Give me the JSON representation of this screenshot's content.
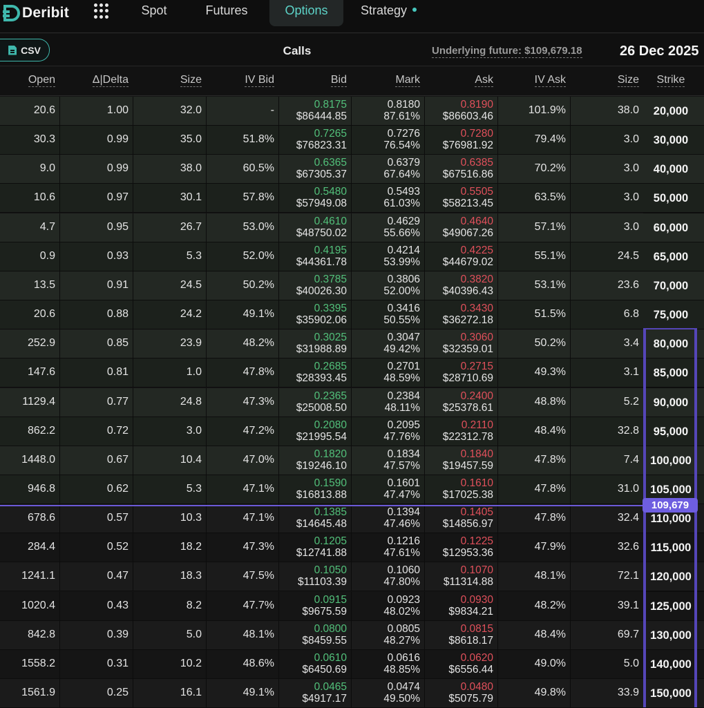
{
  "app": {
    "brand": "Deribit",
    "accent": "#5dd3c8"
  },
  "nav": {
    "tabs": [
      {
        "label": "Spot"
      },
      {
        "label": "Futures"
      },
      {
        "label": "Options"
      },
      {
        "label": "Strategy"
      }
    ],
    "active": "Options"
  },
  "toolbar": {
    "csv_label": "CSV",
    "calls_label": "Calls",
    "underlying": "Underlying future: $109,679.18",
    "expiry": "26 Dec 2025"
  },
  "columns": [
    "Open",
    "Δ|Delta",
    "Size",
    "IV Bid",
    "Bid",
    "Mark",
    "Ask",
    "IV Ask",
    "Size",
    "Strike"
  ],
  "index_price_tag": "109,679",
  "rows": [
    {
      "open": "20.6",
      "delta": "1.00",
      "size": "32.0",
      "iv_bid": "-",
      "bid": "0.8175",
      "bid_usd": "$86444.85",
      "mark": "0.8180",
      "mark_iv": "87.61%",
      "ask": "0.8190",
      "ask_usd": "$86603.46",
      "iv_ask": "101.9%",
      "ask_size": "38.0",
      "strike": "20,000"
    },
    {
      "open": "30.3",
      "delta": "0.99",
      "size": "35.0",
      "iv_bid": "51.8%",
      "bid": "0.7265",
      "bid_usd": "$76823.31",
      "mark": "0.7276",
      "mark_iv": "76.54%",
      "ask": "0.7280",
      "ask_usd": "$76981.92",
      "iv_ask": "79.4%",
      "ask_size": "3.0",
      "strike": "30,000"
    },
    {
      "open": "9.0",
      "delta": "0.99",
      "size": "38.0",
      "iv_bid": "60.5%",
      "bid": "0.6365",
      "bid_usd": "$67305.37",
      "mark": "0.6379",
      "mark_iv": "67.64%",
      "ask": "0.6385",
      "ask_usd": "$67516.86",
      "iv_ask": "70.2%",
      "ask_size": "3.0",
      "strike": "40,000"
    },
    {
      "open": "10.6",
      "delta": "0.97",
      "size": "30.1",
      "iv_bid": "57.8%",
      "bid": "0.5480",
      "bid_usd": "$57949.08",
      "mark": "0.5493",
      "mark_iv": "61.03%",
      "ask": "0.5505",
      "ask_usd": "$58213.45",
      "iv_ask": "63.5%",
      "ask_size": "3.0",
      "strike": "50,000"
    },
    {
      "open": "4.7",
      "delta": "0.95",
      "size": "26.7",
      "iv_bid": "53.0%",
      "bid": "0.4610",
      "bid_usd": "$48750.02",
      "mark": "0.4629",
      "mark_iv": "55.66%",
      "ask": "0.4640",
      "ask_usd": "$49067.26",
      "iv_ask": "57.1%",
      "ask_size": "3.0",
      "strike": "60,000"
    },
    {
      "open": "0.9",
      "delta": "0.93",
      "size": "5.3",
      "iv_bid": "52.0%",
      "bid": "0.4195",
      "bid_usd": "$44361.78",
      "mark": "0.4214",
      "mark_iv": "53.99%",
      "ask": "0.4225",
      "ask_usd": "$44679.02",
      "iv_ask": "55.1%",
      "ask_size": "24.5",
      "strike": "65,000"
    },
    {
      "open": "13.5",
      "delta": "0.91",
      "size": "24.5",
      "iv_bid": "50.2%",
      "bid": "0.3785",
      "bid_usd": "$40026.30",
      "mark": "0.3806",
      "mark_iv": "52.00%",
      "ask": "0.3820",
      "ask_usd": "$40396.43",
      "iv_ask": "53.1%",
      "ask_size": "23.6",
      "strike": "70,000"
    },
    {
      "open": "20.6",
      "delta": "0.88",
      "size": "24.2",
      "iv_bid": "49.1%",
      "bid": "0.3395",
      "bid_usd": "$35902.06",
      "mark": "0.3416",
      "mark_iv": "50.55%",
      "ask": "0.3430",
      "ask_usd": "$36272.18",
      "iv_ask": "51.5%",
      "ask_size": "6.8",
      "strike": "75,000"
    },
    {
      "open": "252.9",
      "delta": "0.85",
      "size": "23.9",
      "iv_bid": "48.2%",
      "bid": "0.3025",
      "bid_usd": "$31988.89",
      "mark": "0.3047",
      "mark_iv": "49.42%",
      "ask": "0.3060",
      "ask_usd": "$32359.01",
      "iv_ask": "50.2%",
      "ask_size": "3.4",
      "strike": "80,000"
    },
    {
      "open": "147.6",
      "delta": "0.81",
      "size": "1.0",
      "iv_bid": "47.8%",
      "bid": "0.2685",
      "bid_usd": "$28393.45",
      "mark": "0.2701",
      "mark_iv": "48.59%",
      "ask": "0.2715",
      "ask_usd": "$28710.69",
      "iv_ask": "49.3%",
      "ask_size": "3.1",
      "strike": "85,000"
    },
    {
      "open": "1129.4",
      "delta": "0.77",
      "size": "24.8",
      "iv_bid": "47.3%",
      "bid": "0.2365",
      "bid_usd": "$25008.50",
      "mark": "0.2384",
      "mark_iv": "48.11%",
      "ask": "0.2400",
      "ask_usd": "$25378.61",
      "iv_ask": "48.8%",
      "ask_size": "5.2",
      "strike": "90,000"
    },
    {
      "open": "862.2",
      "delta": "0.72",
      "size": "3.0",
      "iv_bid": "47.2%",
      "bid": "0.2080",
      "bid_usd": "$21995.54",
      "mark": "0.2095",
      "mark_iv": "47.76%",
      "ask": "0.2110",
      "ask_usd": "$22312.78",
      "iv_ask": "48.4%",
      "ask_size": "32.8",
      "strike": "95,000"
    },
    {
      "open": "1448.0",
      "delta": "0.67",
      "size": "10.4",
      "iv_bid": "47.0%",
      "bid": "0.1820",
      "bid_usd": "$19246.10",
      "mark": "0.1834",
      "mark_iv": "47.57%",
      "ask": "0.1840",
      "ask_usd": "$19457.59",
      "iv_ask": "47.8%",
      "ask_size": "7.4",
      "strike": "100,000"
    },
    {
      "open": "946.8",
      "delta": "0.62",
      "size": "5.3",
      "iv_bid": "47.1%",
      "bid": "0.1590",
      "bid_usd": "$16813.88",
      "mark": "0.1601",
      "mark_iv": "47.47%",
      "ask": "0.1610",
      "ask_usd": "$17025.38",
      "iv_ask": "47.8%",
      "ask_size": "31.0",
      "strike": "105,000"
    },
    {
      "open": "678.6",
      "delta": "0.57",
      "size": "10.3",
      "iv_bid": "47.1%",
      "bid": "0.1385",
      "bid_usd": "$14645.48",
      "mark": "0.1394",
      "mark_iv": "47.46%",
      "ask": "0.1405",
      "ask_usd": "$14856.97",
      "iv_ask": "47.8%",
      "ask_size": "32.4",
      "strike": "110,000"
    },
    {
      "open": "284.4",
      "delta": "0.52",
      "size": "18.2",
      "iv_bid": "47.3%",
      "bid": "0.1205",
      "bid_usd": "$12741.88",
      "mark": "0.1216",
      "mark_iv": "47.61%",
      "ask": "0.1225",
      "ask_usd": "$12953.36",
      "iv_ask": "47.9%",
      "ask_size": "32.6",
      "strike": "115,000"
    },
    {
      "open": "1241.1",
      "delta": "0.47",
      "size": "18.3",
      "iv_bid": "47.5%",
      "bid": "0.1050",
      "bid_usd": "$11103.39",
      "mark": "0.1060",
      "mark_iv": "47.80%",
      "ask": "0.1070",
      "ask_usd": "$11314.88",
      "iv_ask": "48.1%",
      "ask_size": "72.1",
      "strike": "120,000"
    },
    {
      "open": "1020.4",
      "delta": "0.43",
      "size": "8.2",
      "iv_bid": "47.7%",
      "bid": "0.0915",
      "bid_usd": "$9675.59",
      "mark": "0.0923",
      "mark_iv": "48.02%",
      "ask": "0.0930",
      "ask_usd": "$9834.21",
      "iv_ask": "48.2%",
      "ask_size": "39.1",
      "strike": "125,000"
    },
    {
      "open": "842.8",
      "delta": "0.39",
      "size": "5.0",
      "iv_bid": "48.1%",
      "bid": "0.0800",
      "bid_usd": "$8459.55",
      "mark": "0.0805",
      "mark_iv": "48.27%",
      "ask": "0.0815",
      "ask_usd": "$8618.17",
      "iv_ask": "48.4%",
      "ask_size": "69.7",
      "strike": "130,000"
    },
    {
      "open": "1558.2",
      "delta": "0.31",
      "size": "10.2",
      "iv_bid": "48.6%",
      "bid": "0.0610",
      "bid_usd": "$6450.69",
      "mark": "0.0616",
      "mark_iv": "48.85%",
      "ask": "0.0620",
      "ask_usd": "$6556.44",
      "iv_ask": "49.0%",
      "ask_size": "5.0",
      "strike": "140,000"
    },
    {
      "open": "1561.9",
      "delta": "0.25",
      "size": "16.1",
      "iv_bid": "49.1%",
      "bid": "0.0465",
      "bid_usd": "$4917.17",
      "mark": "0.0474",
      "mark_iv": "49.50%",
      "ask": "0.0480",
      "ask_usd": "$5075.79",
      "iv_ask": "49.8%",
      "ask_size": "33.9",
      "strike": "150,000"
    }
  ]
}
